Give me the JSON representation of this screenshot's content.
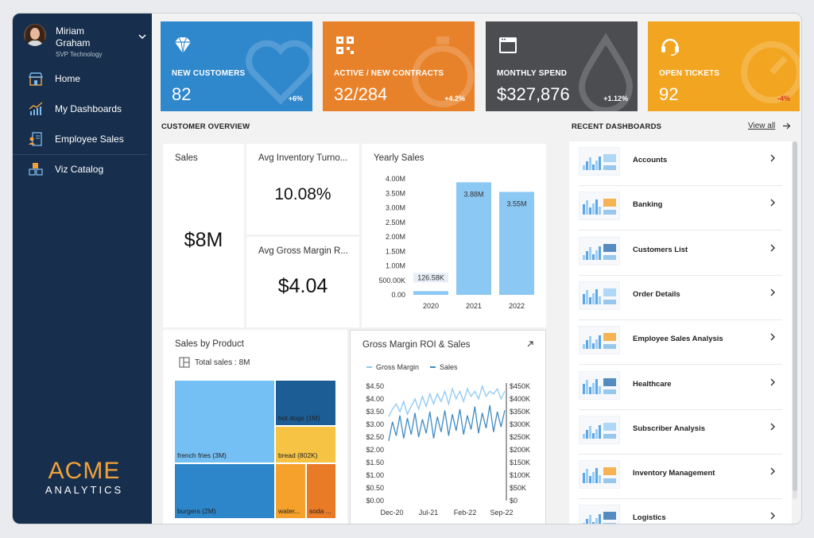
{
  "user": {
    "name": "Miriam Graham",
    "role": "SVP Technology"
  },
  "nav": [
    {
      "label": "Home",
      "icon": "store-icon"
    },
    {
      "label": "My Dashboards",
      "icon": "chart-growth-icon"
    },
    {
      "label": "Employee Sales",
      "icon": "employee-list-icon"
    },
    {
      "label": "Viz Catalog",
      "icon": "boxes-icon"
    }
  ],
  "logo": {
    "main": "ACME",
    "sub": "ANALYTICS"
  },
  "kpis": [
    {
      "title": "NEW CUSTOMERS",
      "value": "82",
      "delta": "+6%",
      "color": "#2f87cc",
      "delta_color": "#ffffff",
      "icon": "diamond-icon"
    },
    {
      "title": "ACTIVE / NEW CONTRACTS",
      "value": "32/284",
      "delta": "+4.2%",
      "color": "#e8822a",
      "delta_color": "#ffffff",
      "icon": "qr-code-icon"
    },
    {
      "title": "MONTHLY SPEND",
      "value": "$327,876",
      "delta": "+1.12%",
      "color": "#4b4d51",
      "delta_color": "#ffffff",
      "icon": "browser-window-icon"
    },
    {
      "title": "OPEN TICKETS",
      "value": "92",
      "delta": "-4%",
      "color": "#f2a521",
      "delta_color": "#d83a1f",
      "icon": "headset-icon"
    }
  ],
  "customer_overview": {
    "heading": "CUSTOMER OVERVIEW",
    "sales": {
      "title": "Sales",
      "value": "$8M"
    },
    "inventory": {
      "title": "Avg Inventory Turno...",
      "value": "10.08%"
    },
    "margin": {
      "title": "Avg Gross Margin R...",
      "value": "$4.04"
    },
    "yearly_title": "Yearly Sales",
    "product_title": "Sales by Product",
    "product_total": "Total sales : 8M",
    "gm_title": "Gross Margin ROI & Sales"
  },
  "recent": {
    "heading": "RECENT DASHBOARDS",
    "view_all": "View all",
    "items": [
      "Accounts",
      "Banking",
      "Customers List",
      "Order Details",
      "Employee Sales Analysis",
      "Healthcare",
      "Subscriber Analysis",
      "Inventory Management",
      "Logistics"
    ]
  },
  "chart_data": [
    {
      "type": "bar",
      "title": "Yearly Sales",
      "categories": [
        "2020",
        "2021",
        "2022"
      ],
      "values": [
        126580,
        3880000,
        3550000
      ],
      "data_labels": [
        "126.58K",
        "3.88M",
        "3.55M"
      ],
      "yticks": [
        "0.00",
        "500.00K",
        "1.00M",
        "1.50M",
        "2.00M",
        "2.50M",
        "3.00M",
        "3.50M",
        "4.00M"
      ],
      "ylim": [
        0,
        4000000
      ],
      "color": "#8cc8f4"
    },
    {
      "type": "treemap",
      "title": "Sales by Product",
      "labels": [
        "french fries (3M)",
        "burgers (2M)",
        "hot dogs (1M)",
        "bread (802K)",
        "water...",
        "soda ..."
      ],
      "values": [
        3000000,
        2000000,
        1000000,
        802000,
        600000,
        600000
      ],
      "colors": [
        "#74bff3",
        "#2d86c9",
        "#1c5d96",
        "#f6c344",
        "#f5a12b",
        "#e97a26"
      ]
    },
    {
      "type": "line",
      "title": "Gross Margin ROI & Sales",
      "series": [
        {
          "name": "Gross Margin",
          "axis": "left",
          "color": "#8cc8f4",
          "values": [
            3.3,
            3.6,
            3.8,
            3.5,
            3.9,
            3.4,
            3.7,
            4.0,
            3.6,
            4.1,
            3.7,
            4.2,
            3.8,
            4.2,
            3.9,
            4.3,
            3.8,
            4.4,
            4.0,
            4.3,
            3.9,
            4.4,
            4.1,
            4.3,
            4.0,
            4.5,
            4.1,
            4.3,
            4.2,
            4.4,
            4.0,
            4.3
          ]
        },
        {
          "name": "Sales",
          "axis": "right",
          "color": "#3f8bc4",
          "values": [
            235,
            310,
            255,
            335,
            245,
            325,
            260,
            345,
            250,
            320,
            265,
            350,
            245,
            330,
            270,
            355,
            255,
            340,
            275,
            360,
            260,
            335,
            280,
            370,
            265,
            345,
            285,
            375,
            270,
            350,
            290,
            355
          ]
        }
      ],
      "xticks": [
        "Dec-20",
        "Jul-21",
        "Feb-22",
        "Sep-22"
      ],
      "yticks_left": [
        "$0.00",
        "$0.50",
        "$1.00",
        "$1.50",
        "$2.00",
        "$2.50",
        "$3.00",
        "$3.50",
        "$4.00",
        "$4.50"
      ],
      "yticks_right": [
        "$0",
        "$50K",
        "$100K",
        "$150K",
        "$200K",
        "$250K",
        "$300K",
        "$350K",
        "$400K",
        "$450K"
      ],
      "ylim_left": [
        0,
        4.5
      ],
      "ylim_right": [
        0,
        450
      ],
      "legend": "top"
    }
  ]
}
